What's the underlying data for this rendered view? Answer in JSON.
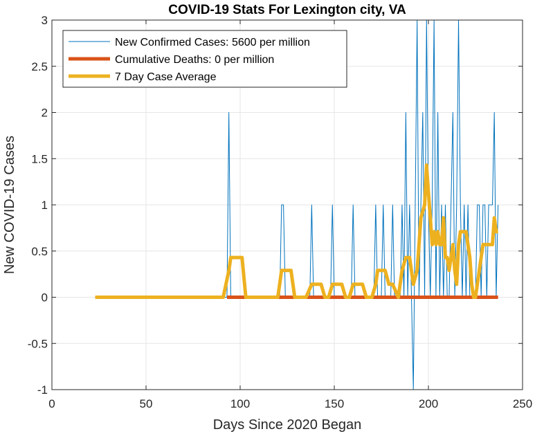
{
  "chart_data": {
    "type": "line",
    "title": "COVID-19 Stats For Lexington city, VA",
    "xlabel": "Days Since 2020 Began",
    "ylabel": "New COVID-19 Cases",
    "xlim": [
      0,
      250
    ],
    "ylim": [
      -1,
      3
    ],
    "xticks": [
      0,
      50,
      100,
      150,
      200,
      250
    ],
    "yticks": [
      -1,
      -0.5,
      0,
      0.5,
      1,
      1.5,
      2,
      2.5,
      3
    ],
    "grid": true,
    "legend_position": "top-left",
    "colors": {
      "new_cases": "#0072BD",
      "deaths": "#D95319",
      "average": "#EDB120",
      "grid": "#E6E6E6",
      "axis": "#262626"
    },
    "series": [
      {
        "name": "New Confirmed Cases: 5600 per million",
        "color": "#0072BD",
        "width": 1,
        "x": [
          23,
          93,
          94,
          95,
          121,
          122,
          123,
          124,
          137,
          138,
          139,
          148,
          149,
          150,
          159,
          160,
          161,
          171,
          172,
          173,
          175,
          176,
          177,
          180,
          181,
          182,
          185,
          186,
          187,
          188,
          189,
          190,
          191,
          192,
          193,
          194,
          195,
          196,
          197,
          198,
          199,
          200,
          201,
          202,
          203,
          204,
          205,
          206,
          207,
          208,
          209,
          210,
          211,
          212,
          213,
          214,
          215,
          216,
          217,
          218,
          219,
          220,
          221,
          222,
          223,
          224,
          225,
          226,
          227,
          228,
          229,
          230,
          231,
          232,
          233,
          234,
          235,
          236,
          237
        ],
        "y": [
          0,
          0,
          2,
          0,
          0,
          1,
          1,
          0,
          0,
          1,
          0,
          0,
          1,
          0,
          0,
          1,
          0,
          0,
          1,
          0,
          0,
          1,
          0,
          0,
          1,
          0,
          0,
          1,
          0,
          2,
          0,
          1,
          0,
          -1,
          1,
          3,
          0,
          1,
          2,
          0,
          3,
          1,
          0,
          1,
          3,
          0,
          2,
          0,
          1,
          0,
          1,
          0,
          0,
          1,
          2,
          0,
          1,
          3,
          1,
          0,
          1,
          0,
          1,
          0,
          0,
          0,
          0,
          1,
          1,
          0,
          1,
          1,
          0,
          1,
          1,
          1,
          2,
          0,
          1
        ]
      },
      {
        "name": "Cumulative Deaths: 0 per million",
        "color": "#D95319",
        "width": 5,
        "x": [
          93,
          237
        ],
        "y": [
          0,
          0
        ]
      },
      {
        "name": "7 Day Case Average",
        "color": "#EDB120",
        "width": 5,
        "x": [
          23,
          91,
          94,
          95,
          99,
          101,
          103,
          120,
          122,
          123,
          127,
          129,
          131,
          135,
          138,
          143,
          145,
          147,
          149,
          154,
          156,
          158,
          160,
          165,
          167,
          170,
          172,
          173,
          177,
          179,
          181,
          184,
          186,
          188,
          190,
          192,
          194,
          195,
          196,
          198,
          199,
          200,
          201,
          202,
          203,
          204,
          205,
          206,
          207,
          208,
          209,
          210,
          211,
          212,
          213,
          214,
          215,
          216,
          217,
          218,
          220,
          221,
          222,
          223,
          224,
          225,
          226,
          228,
          229,
          230,
          231,
          233,
          234,
          235,
          236,
          237
        ],
        "y": [
          0,
          0,
          0.29,
          0.43,
          0.43,
          0.43,
          0,
          0,
          0.29,
          0.29,
          0.29,
          0,
          0,
          0,
          0.14,
          0.14,
          0,
          0,
          0.14,
          0.14,
          0,
          0,
          0.14,
          0.14,
          0,
          0,
          0.14,
          0.29,
          0.29,
          0.14,
          0.14,
          0,
          0.29,
          0.43,
          0.43,
          0.14,
          0.29,
          0.57,
          0.86,
          1.0,
          1.43,
          1.14,
          0.86,
          0.57,
          0.71,
          0.57,
          0.71,
          0.57,
          0.57,
          0.86,
          0.43,
          0.43,
          0.29,
          0.43,
          0.57,
          0.29,
          0.14,
          0.57,
          0.71,
          0.71,
          0.71,
          0.57,
          0.43,
          0.14,
          0,
          0,
          0.14,
          0.43,
          0.57,
          0.57,
          0.57,
          0.57,
          0.57,
          0.86,
          0.71,
          0.71
        ]
      }
    ]
  }
}
